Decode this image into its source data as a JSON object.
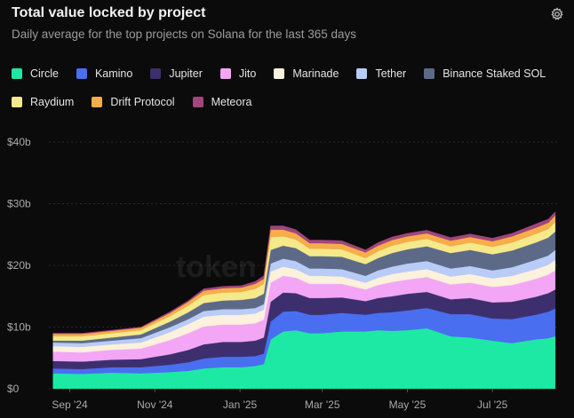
{
  "header": {
    "title": "Total value locked by project",
    "subtitle": "Daily average for the top projects on Solana for the last 365 days",
    "settings_icon": "gear-icon"
  },
  "watermark": "token",
  "legend_rows": [
    [
      {
        "label": "Circle",
        "color": "#1de9a4"
      },
      {
        "label": "Kamino",
        "color": "#4a6ef0"
      },
      {
        "label": "Jupiter",
        "color": "#3d2f6e"
      },
      {
        "label": "Jito",
        "color": "#f3a6f5"
      },
      {
        "label": "Marinade",
        "color": "#fbf1dc"
      },
      {
        "label": "Tether",
        "color": "#b9ccf7"
      },
      {
        "label": "Binance Staked SOL",
        "color": "#5d6a87"
      }
    ],
    [
      {
        "label": "Raydium",
        "color": "#f5e98a"
      },
      {
        "label": "Drift Protocol",
        "color": "#f6ad4a"
      },
      {
        "label": "Meteora",
        "color": "#a1457d"
      }
    ]
  ],
  "chart_data": {
    "type": "area",
    "stacked": true,
    "ylim": [
      0,
      40
    ],
    "y_unit": "b",
    "y_ticks": [
      "$0",
      "$10b",
      "$20b",
      "$30b",
      "$40b"
    ],
    "x_ticks": [
      "Sep '24",
      "Nov '24",
      "Jan '25",
      "Mar '25",
      "May '25",
      "Jul '25"
    ],
    "x": [
      "2024-08-20",
      "2024-09-10",
      "2024-10-01",
      "2024-10-22",
      "2024-11-12",
      "2024-11-25",
      "2024-12-06",
      "2024-12-20",
      "2025-01-02",
      "2025-01-12",
      "2025-01-18",
      "2025-01-23",
      "2025-02-01",
      "2025-02-10",
      "2025-02-20",
      "2025-03-01",
      "2025-03-15",
      "2025-04-01",
      "2025-04-10",
      "2025-04-20",
      "2025-05-01",
      "2025-05-15",
      "2025-06-01",
      "2025-06-15",
      "2025-07-01",
      "2025-07-15",
      "2025-08-01",
      "2025-08-10",
      "2025-08-15"
    ],
    "series": [
      {
        "name": "Circle",
        "values": [
          2.5,
          2.4,
          2.6,
          2.5,
          2.7,
          2.9,
          3.3,
          3.5,
          3.5,
          3.7,
          4.0,
          8.0,
          9.3,
          9.5,
          9.0,
          9.0,
          9.3,
          9.3,
          9.5,
          9.4,
          9.5,
          9.8,
          8.5,
          8.3,
          7.8,
          7.4,
          8.0,
          8.2,
          8.5
        ]
      },
      {
        "name": "Kamino",
        "values": [
          0.8,
          0.8,
          0.9,
          1.0,
          1.2,
          1.4,
          1.6,
          1.7,
          1.7,
          1.6,
          1.7,
          2.9,
          3.2,
          3.1,
          3.0,
          3.0,
          3.0,
          2.7,
          2.8,
          3.0,
          3.2,
          3.3,
          3.6,
          3.8,
          3.6,
          3.9,
          4.0,
          4.3,
          4.5
        ]
      },
      {
        "name": "Jupiter",
        "values": [
          1.2,
          1.2,
          1.2,
          1.3,
          1.7,
          2.0,
          2.3,
          2.4,
          2.4,
          2.5,
          2.6,
          3.2,
          3.1,
          2.9,
          2.7,
          2.7,
          2.5,
          2.2,
          2.4,
          2.6,
          2.7,
          2.6,
          2.4,
          2.6,
          2.6,
          2.8,
          2.9,
          3.0,
          3.1
        ]
      },
      {
        "name": "Jito",
        "values": [
          1.5,
          1.5,
          1.6,
          1.7,
          2.3,
          2.7,
          2.9,
          2.8,
          2.8,
          2.8,
          2.9,
          3.1,
          2.7,
          2.5,
          2.3,
          2.3,
          2.2,
          1.9,
          2.1,
          2.3,
          2.3,
          2.4,
          2.4,
          2.5,
          2.5,
          2.7,
          2.9,
          3.0,
          3.1
        ]
      },
      {
        "name": "Marinade",
        "values": [
          0.9,
          0.9,
          0.9,
          1.0,
          1.3,
          1.5,
          1.6,
          1.6,
          1.6,
          1.6,
          1.6,
          1.8,
          1.5,
          1.4,
          1.3,
          1.3,
          1.2,
          1.1,
          1.2,
          1.3,
          1.3,
          1.3,
          1.3,
          1.4,
          1.4,
          1.5,
          1.6,
          1.6,
          1.7
        ]
      },
      {
        "name": "Tether",
        "values": [
          0.6,
          0.6,
          0.6,
          0.7,
          0.8,
          0.8,
          0.9,
          0.9,
          0.9,
          0.9,
          0.9,
          1.3,
          1.3,
          1.3,
          1.2,
          1.2,
          1.2,
          1.1,
          1.2,
          1.2,
          1.3,
          1.3,
          1.3,
          1.3,
          1.3,
          1.4,
          1.5,
          1.5,
          1.6
        ]
      },
      {
        "name": "Binance Staked SOL",
        "values": [
          0.3,
          0.4,
          0.5,
          0.6,
          0.9,
          1.1,
          1.3,
          1.4,
          1.5,
          1.6,
          1.7,
          2.2,
          2.1,
          2.1,
          2.0,
          2.0,
          2.0,
          1.9,
          2.0,
          2.2,
          2.3,
          2.4,
          2.5,
          2.6,
          2.6,
          2.7,
          2.8,
          2.9,
          3.0
        ]
      },
      {
        "name": "Raydium",
        "values": [
          0.7,
          0.7,
          0.7,
          0.7,
          0.9,
          1.1,
          1.3,
          1.3,
          1.3,
          1.5,
          1.6,
          2.1,
          1.5,
          1.4,
          1.2,
          1.2,
          1.2,
          1.0,
          1.1,
          1.2,
          1.2,
          1.2,
          1.1,
          1.2,
          1.2,
          1.3,
          1.4,
          1.4,
          1.5
        ]
      },
      {
        "name": "Drift Protocol",
        "values": [
          0.4,
          0.4,
          0.4,
          0.4,
          0.5,
          0.6,
          0.7,
          0.7,
          0.7,
          0.8,
          0.8,
          1.2,
          1.1,
          1.0,
          0.9,
          0.9,
          0.9,
          0.9,
          0.9,
          0.9,
          0.9,
          0.9,
          0.9,
          0.9,
          0.9,
          1.0,
          1.0,
          1.0,
          1.1
        ]
      },
      {
        "name": "Meteora",
        "values": [
          0.1,
          0.1,
          0.1,
          0.1,
          0.2,
          0.2,
          0.3,
          0.3,
          0.3,
          0.4,
          0.5,
          0.6,
          0.6,
          0.6,
          0.5,
          0.5,
          0.5,
          0.4,
          0.5,
          0.5,
          0.5,
          0.5,
          0.5,
          0.5,
          0.5,
          0.5,
          0.6,
          0.6,
          0.6
        ]
      }
    ]
  }
}
